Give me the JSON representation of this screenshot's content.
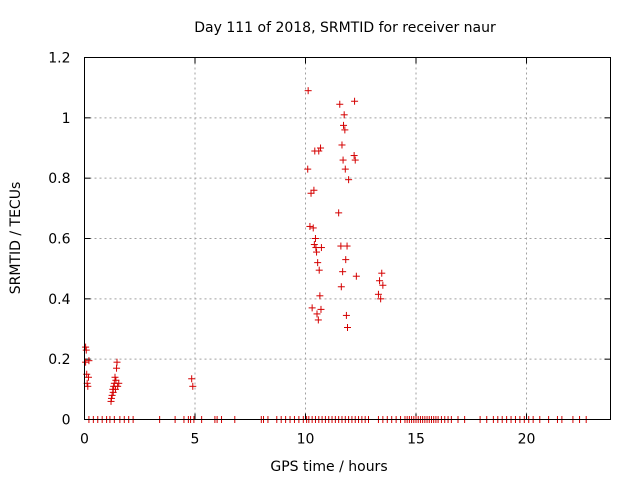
{
  "chart_data": {
    "type": "scatter",
    "title": "Day 111 of 2018, SRMTID for receiver naur",
    "xlabel": "GPS time / hours",
    "ylabel": "SRMTID / TECUs",
    "xlim": [
      0,
      23.8
    ],
    "ylim": [
      0,
      1.2
    ],
    "x_ticks": [
      0,
      5,
      10,
      15,
      20
    ],
    "x_tick_labels": [
      "0",
      "5",
      "10",
      "15",
      "20"
    ],
    "y_ticks": [
      0,
      0.2,
      0.4,
      0.6,
      0.8,
      1,
      1.2
    ],
    "y_tick_labels": [
      "0",
      "0.2",
      "0.4",
      "0.6",
      "0.8",
      "1",
      "1.2"
    ],
    "grid": true,
    "marker": "plus",
    "series": [
      {
        "name": "SRMTID",
        "color": "#d40000",
        "points": [
          [
            0.05,
            0.24
          ],
          [
            0.05,
            0.19
          ],
          [
            0.08,
            0.23
          ],
          [
            0.1,
            0.15
          ],
          [
            0.12,
            0.12
          ],
          [
            0.15,
            0.11
          ],
          [
            0.18,
            0.14
          ],
          [
            0.2,
            0.195
          ],
          [
            1.2,
            0.06
          ],
          [
            1.22,
            0.07
          ],
          [
            1.25,
            0.08
          ],
          [
            1.28,
            0.1
          ],
          [
            1.3,
            0.09
          ],
          [
            1.32,
            0.11
          ],
          [
            1.35,
            0.12
          ],
          [
            1.38,
            0.14
          ],
          [
            1.4,
            0.1
          ],
          [
            1.42,
            0.13
          ],
          [
            1.45,
            0.17
          ],
          [
            1.47,
            0.19
          ],
          [
            1.5,
            0.11
          ],
          [
            1.55,
            0.12
          ],
          [
            4.85,
            0.135
          ],
          [
            4.9,
            0.11
          ],
          [
            10.1,
            0.83
          ],
          [
            10.12,
            1.09
          ],
          [
            10.2,
            0.64
          ],
          [
            10.25,
            0.75
          ],
          [
            10.3,
            0.37
          ],
          [
            10.35,
            0.635
          ],
          [
            10.38,
            0.76
          ],
          [
            10.4,
            0.58
          ],
          [
            10.42,
            0.89
          ],
          [
            10.45,
            0.6
          ],
          [
            10.47,
            0.57
          ],
          [
            10.5,
            0.555
          ],
          [
            10.52,
            0.35
          ],
          [
            10.55,
            0.52
          ],
          [
            10.58,
            0.33
          ],
          [
            10.6,
            0.89
          ],
          [
            10.62,
            0.495
          ],
          [
            10.65,
            0.41
          ],
          [
            10.68,
            0.9
          ],
          [
            10.7,
            0.365
          ],
          [
            10.72,
            0.57
          ],
          [
            11.5,
            0.685
          ],
          [
            11.55,
            1.045
          ],
          [
            11.6,
            0.575
          ],
          [
            11.62,
            0.44
          ],
          [
            11.65,
            0.91
          ],
          [
            11.68,
            0.49
          ],
          [
            11.7,
            0.86
          ],
          [
            11.72,
            0.975
          ],
          [
            11.75,
            1.01
          ],
          [
            11.78,
            0.96
          ],
          [
            11.8,
            0.83
          ],
          [
            11.82,
            0.53
          ],
          [
            11.85,
            0.345
          ],
          [
            11.88,
            0.575
          ],
          [
            11.9,
            0.305
          ],
          [
            11.95,
            0.795
          ],
          [
            12.2,
            0.875
          ],
          [
            12.22,
            1.055
          ],
          [
            12.25,
            0.86
          ],
          [
            12.3,
            0.475
          ],
          [
            13.3,
            0.415
          ],
          [
            13.35,
            0.46
          ],
          [
            13.4,
            0.4
          ],
          [
            13.45,
            0.485
          ],
          [
            13.5,
            0.445
          ]
        ]
      }
    ],
    "zero_value_times": [
      0.2,
      0.4,
      0.6,
      0.8,
      1.0,
      1.15,
      1.35,
      1.6,
      1.8,
      2.0,
      2.2,
      3.4,
      4.1,
      4.5,
      4.7,
      4.8,
      4.95,
      5.3,
      5.9,
      6.0,
      6.2,
      6.8,
      8.0,
      8.1,
      8.3,
      8.7,
      8.9,
      9.1,
      9.3,
      9.5,
      9.7,
      9.9,
      10.05,
      10.15,
      10.3,
      10.45,
      10.6,
      10.75,
      10.9,
      11.05,
      11.2,
      11.35,
      11.5,
      11.65,
      11.8,
      11.95,
      12.1,
      12.25,
      12.4,
      12.55,
      12.7,
      12.85,
      13.3,
      13.5,
      13.7,
      13.9,
      14.1,
      14.3,
      14.5,
      14.6,
      14.7,
      14.8,
      14.9,
      15.0,
      15.1,
      15.2,
      15.3,
      15.4,
      15.5,
      15.6,
      15.7,
      15.8,
      15.9,
      16.0,
      16.15,
      16.3,
      16.45,
      16.6,
      16.9,
      17.2,
      17.9,
      18.2,
      18.5,
      18.7,
      18.9,
      19.1,
      19.3,
      19.5,
      19.7,
      19.9,
      20.1,
      20.3,
      20.6,
      21.0,
      21.4,
      21.6,
      22.1,
      22.4,
      22.7
    ]
  }
}
